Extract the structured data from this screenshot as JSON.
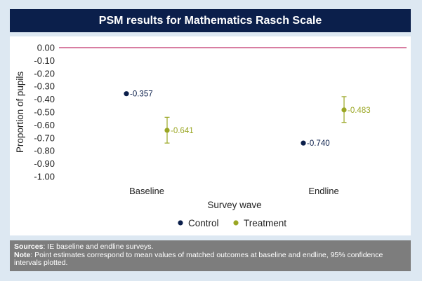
{
  "title": "PSM results for Mathematics Rasch Scale",
  "colors": {
    "control": "#0b1f4b",
    "treatment": "#9aa623",
    "zero_line": "#c0306a",
    "title_bg": "#0b1f4b",
    "notes_bg": "#7d7d7d"
  },
  "chart_data": {
    "type": "scatter",
    "title": "PSM results for Mathematics Rasch Scale",
    "xlabel": "Survey wave",
    "ylabel": "Proportion of pupils",
    "categories": [
      "Baseline",
      "Endline"
    ],
    "ylim": [
      -1.0,
      0.0
    ],
    "yticks": [
      "0.00",
      "-0.10",
      "-0.20",
      "-0.30",
      "-0.40",
      "-0.50",
      "-0.60",
      "-0.70",
      "-0.80",
      "-0.90",
      "-1.00"
    ],
    "reference_line": 0.0,
    "legend_position": "bottom",
    "series": [
      {
        "name": "Control",
        "color": "#0b1f4b",
        "points": [
          {
            "category": "Baseline",
            "value": -0.357,
            "label": "-0.357"
          },
          {
            "category": "Endline",
            "value": -0.74,
            "label": "-0.740"
          }
        ]
      },
      {
        "name": "Treatment",
        "color": "#9aa623",
        "points": [
          {
            "category": "Baseline",
            "value": -0.641,
            "label": "-0.641",
            "ci": [
              -0.74,
              -0.54
            ]
          },
          {
            "category": "Endline",
            "value": -0.483,
            "label": "-0.483",
            "ci": [
              -0.58,
              -0.38
            ]
          }
        ]
      }
    ]
  },
  "notes": {
    "sources_label": "Sources",
    "sources_text": ": IE baseline and endline surveys.",
    "note_label": "Note",
    "note_text": ": Point estimates correspond to mean values of matched outcomes at baseline and endline, 95% confidence intervals plotted."
  }
}
